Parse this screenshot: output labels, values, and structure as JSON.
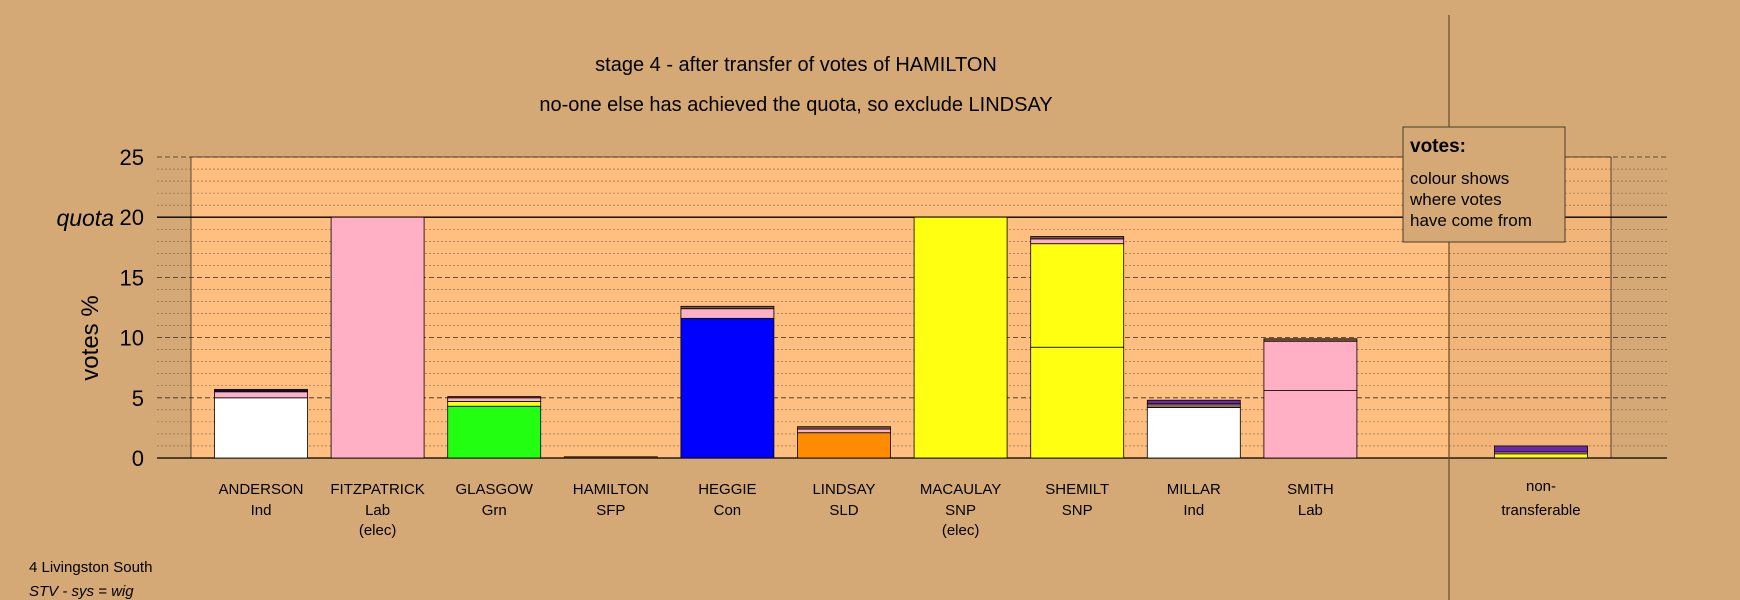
{
  "chart_data": {
    "type": "bar",
    "title": "stage 4 - after transfer of votes of HAMILTON",
    "subtitle": "no-one else has achieved the quota, so exclude LINDSAY",
    "ylabel": "votes %",
    "quota_label": "quota",
    "quota": 20,
    "ylim": [
      0,
      25
    ],
    "yticks": [
      0,
      5,
      10,
      15,
      20,
      25
    ],
    "grid": true,
    "legend": {
      "title": "votes:",
      "lines": [
        "colour shows",
        "where votes",
        "have come from"
      ],
      "position": "top-right"
    },
    "colors": {
      "Ind": "#ffffff",
      "Lab": "#ffb0c4",
      "Grn": "#22ff11",
      "SFP": "#7a5a3a",
      "Con": "#0000ff",
      "SLD": "#ff8c00",
      "SNP": "#ffff11",
      "Ind2": "#8b6f55",
      "transfer_mix": "#6a2aa8",
      "plot_bg": "#ffbf80",
      "page_bg": "#d4a976"
    },
    "candidates": [
      {
        "name": "ANDERSON",
        "party": "Ind",
        "note": "",
        "total": 5.7,
        "segments": [
          {
            "from": "Ind",
            "value": 5.0
          },
          {
            "from": "Lab",
            "value": 0.5
          },
          {
            "from": "Con",
            "value": 0.1
          },
          {
            "from": "SFP",
            "value": 0.1
          }
        ]
      },
      {
        "name": "FITZPATRICK",
        "party": "Lab",
        "note": "(elec)",
        "total": 20.0,
        "segments": [
          {
            "from": "Lab",
            "value": 20.0
          }
        ]
      },
      {
        "name": "GLASGOW",
        "party": "Grn",
        "note": "",
        "total": 5.1,
        "segments": [
          {
            "from": "Grn",
            "value": 4.3
          },
          {
            "from": "SNP",
            "value": 0.4
          },
          {
            "from": "Lab",
            "value": 0.3
          },
          {
            "from": "SFP",
            "value": 0.1
          }
        ]
      },
      {
        "name": "HAMILTON",
        "party": "SFP",
        "note": "",
        "total": 0.05,
        "segments": [
          {
            "from": "SFP",
            "value": 0.05
          }
        ]
      },
      {
        "name": "HEGGIE",
        "party": "Con",
        "note": "",
        "total": 12.6,
        "segments": [
          {
            "from": "Con",
            "value": 11.6
          },
          {
            "from": "Lab",
            "value": 0.8
          },
          {
            "from": "SFP",
            "value": 0.2
          }
        ]
      },
      {
        "name": "LINDSAY",
        "party": "SLD",
        "note": "",
        "total": 2.6,
        "segments": [
          {
            "from": "SLD",
            "value": 2.1
          },
          {
            "from": "Lab",
            "value": 0.3
          },
          {
            "from": "SFP",
            "value": 0.2
          }
        ]
      },
      {
        "name": "MACAULAY",
        "party": "SNP",
        "note": "(elec)",
        "total": 20.0,
        "segments": [
          {
            "from": "SNP",
            "value": 20.0
          }
        ]
      },
      {
        "name": "SHEMILT",
        "party": "SNP",
        "note": "",
        "total": 18.4,
        "segments": [
          {
            "from": "SNP",
            "value": 9.2
          },
          {
            "from": "SNP",
            "value": 8.6
          },
          {
            "from": "Lab",
            "value": 0.4
          },
          {
            "from": "SFP",
            "value": 0.2
          }
        ]
      },
      {
        "name": "MILLAR",
        "party": "Ind",
        "note": "",
        "total": 4.8,
        "segments": [
          {
            "from": "Ind",
            "value": 4.2
          },
          {
            "from": "Ind2",
            "value": 0.3
          },
          {
            "from": "transfer_mix",
            "value": 0.3
          }
        ]
      },
      {
        "name": "SMITH",
        "party": "Lab",
        "note": "",
        "total": 9.9,
        "segments": [
          {
            "from": "Lab",
            "value": 5.6
          },
          {
            "from": "Lab",
            "value": 4.1
          },
          {
            "from": "SFP",
            "value": 0.2
          }
        ]
      }
    ],
    "non_transferable": {
      "label_1": "non-",
      "label_2": "transferable",
      "total": 1.0,
      "segments": [
        {
          "from": "SNP",
          "value": 0.35
        },
        {
          "from": "Lab",
          "value": 0.15
        },
        {
          "from": "transfer_mix",
          "value": 0.5
        }
      ]
    }
  },
  "footer": {
    "ward": "4 Livingston South",
    "system": "STV - sys = wig"
  }
}
